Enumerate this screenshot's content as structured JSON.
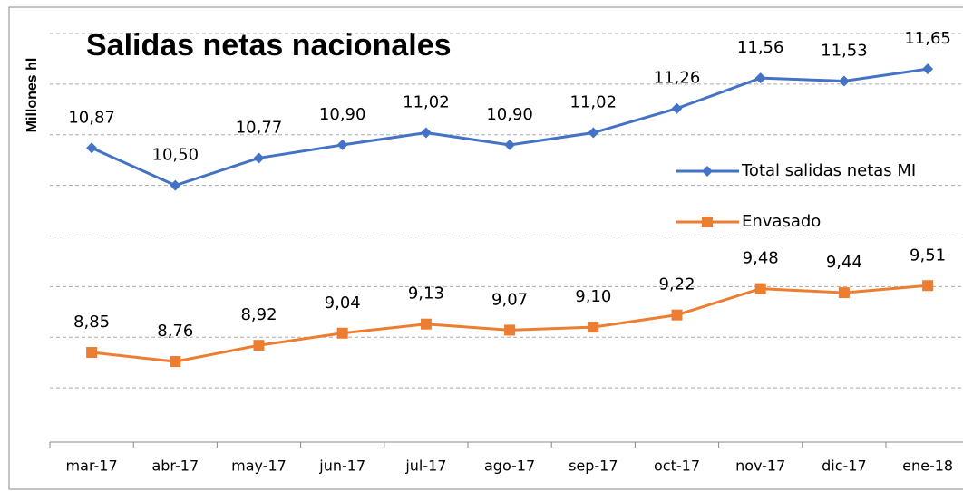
{
  "chart_data": {
    "type": "line",
    "title": "Salidas netas nacionales",
    "y_label": "Millones hl",
    "categories": [
      "mar-17",
      "abr-17",
      "may-17",
      "jun-17",
      "jul-17",
      "ago-17",
      "sep-17",
      "oct-17",
      "nov-17",
      "dic-17",
      "ene-18"
    ],
    "series": [
      {
        "name": "Total salidas netas MI",
        "color": "#4472c4",
        "marker": "diamond",
        "values": [
          10.87,
          10.5,
          10.77,
          10.9,
          11.02,
          10.9,
          11.02,
          11.26,
          11.56,
          11.53,
          11.65
        ],
        "value_labels": [
          "10,87",
          "10,50",
          "10,77",
          "10,90",
          "11,02",
          "10,90",
          "11,02",
          "11,26",
          "11,56",
          "11,53",
          "11,65"
        ]
      },
      {
        "name": "Envasado",
        "color": "#ed7d31",
        "marker": "square",
        "values": [
          8.85,
          8.76,
          8.92,
          9.04,
          9.13,
          9.07,
          9.1,
          9.22,
          9.48,
          9.44,
          9.51
        ],
        "value_labels": [
          "8,85",
          "8,76",
          "8,92",
          "9,04",
          "9,13",
          "9,07",
          "9,10",
          "9,22",
          "9,48",
          "9,44",
          "9,51"
        ]
      }
    ],
    "ylim": [
      8,
      12
    ],
    "yticks": [
      8.5,
      9,
      9.5,
      10,
      10.5,
      11,
      11.5,
      12
    ],
    "grid": true
  }
}
